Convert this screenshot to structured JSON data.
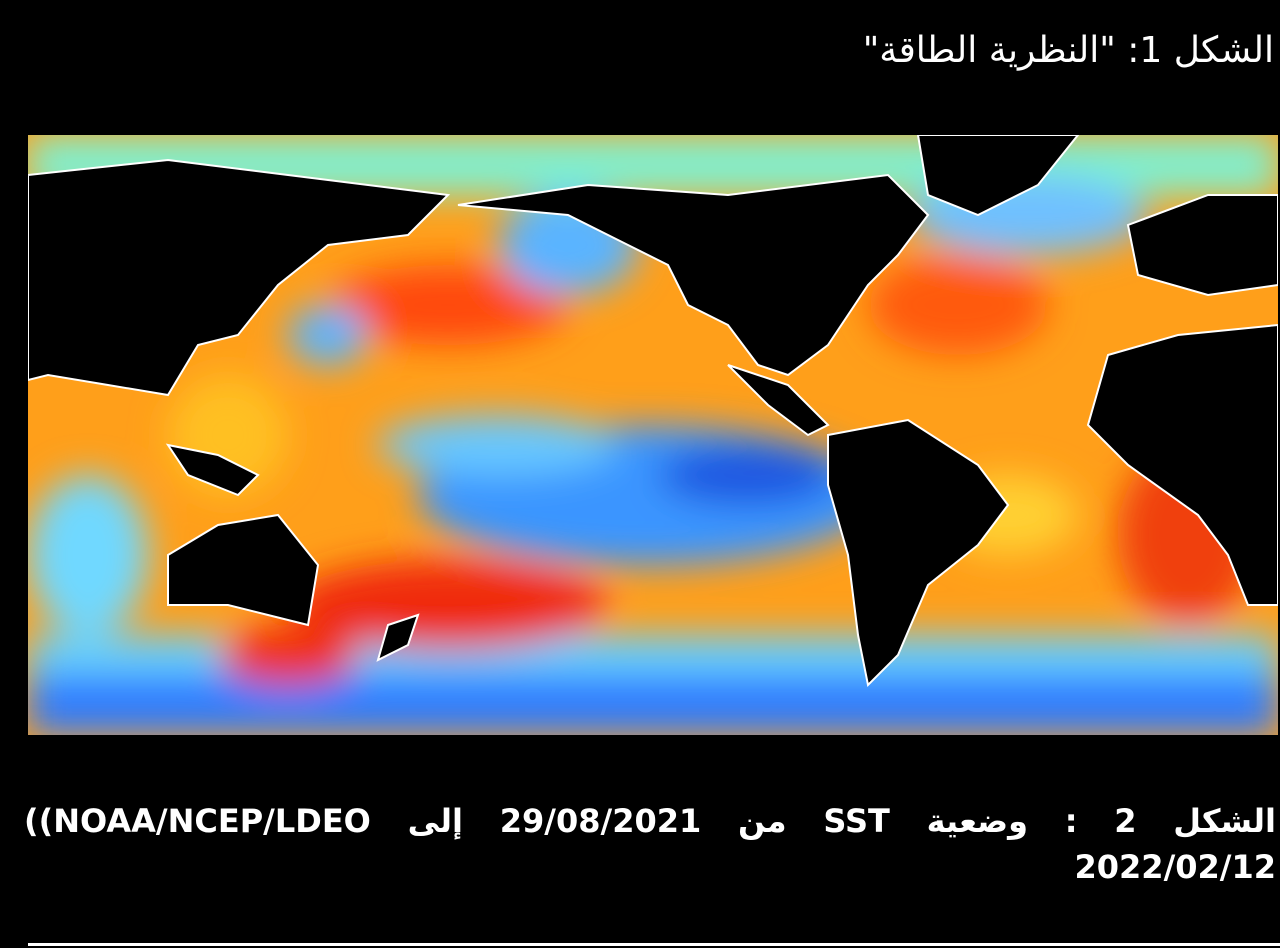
{
  "header": {
    "title": "الشكل 1: \"النظرية الطاقة\""
  },
  "caption": {
    "line1": "الشكل 2 : وضعية SST من 29/08/2021 إلى NOAA/NCEP/LDEO))",
    "line2": "2022/02/12"
  }
}
